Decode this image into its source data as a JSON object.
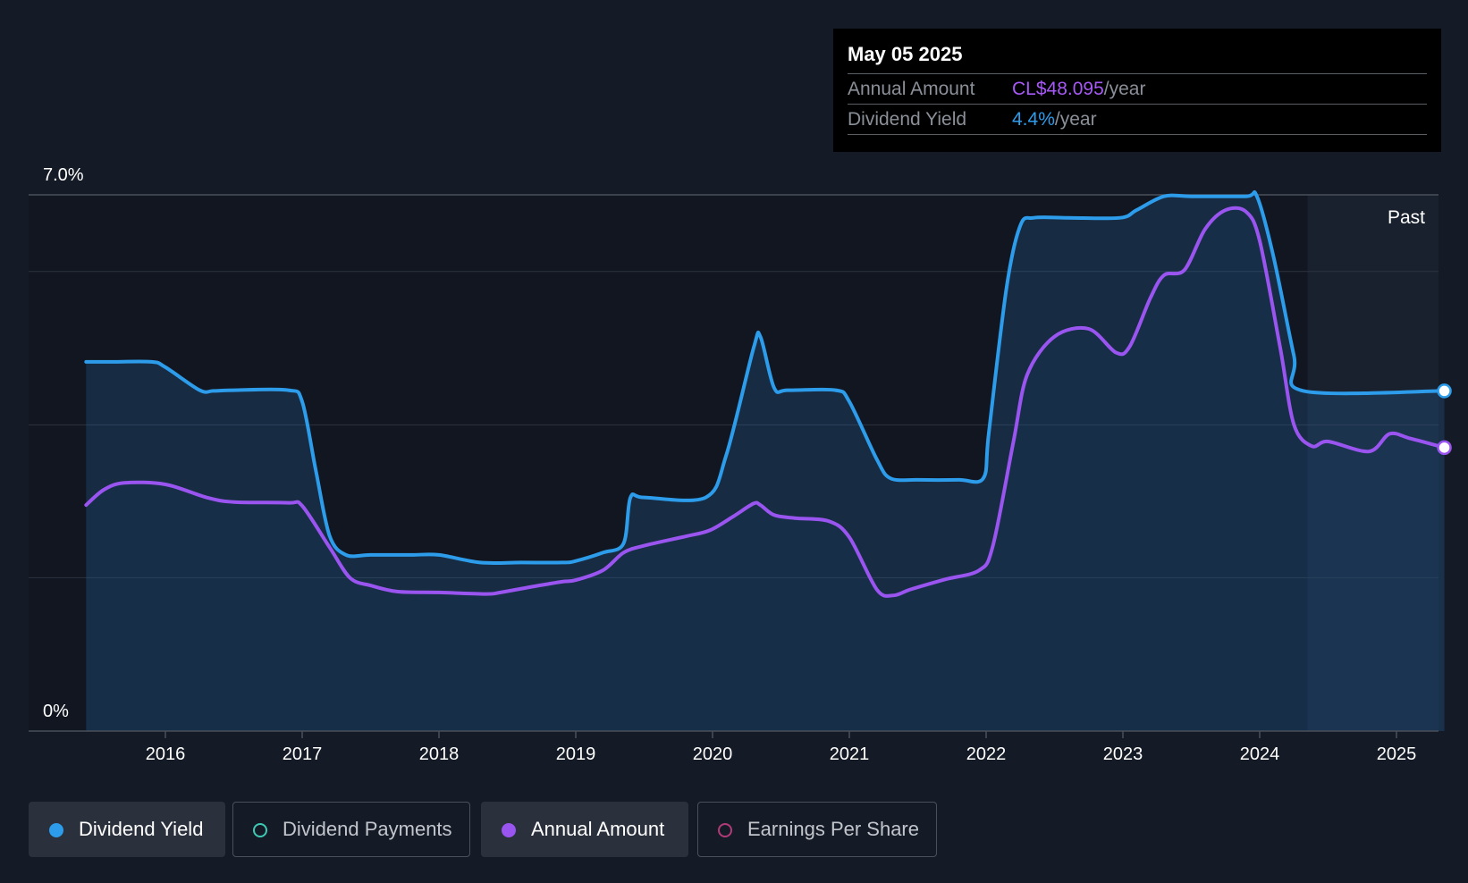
{
  "tooltip": {
    "date": "May 05 2025",
    "annual_label": "Annual Amount",
    "annual_value": "CL$48.095",
    "annual_unit": "/year",
    "yield_label": "Dividend Yield",
    "yield_value": "4.4%",
    "yield_unit": "/year"
  },
  "colors": {
    "background": "#151b26",
    "yield": "#2d9cea",
    "annual": "#9a55f0",
    "payments": "#3fc9b4",
    "eps": "#b23a78"
  },
  "legend": [
    {
      "label": "Dividend Yield",
      "active": true,
      "color": "#2d9cea"
    },
    {
      "label": "Dividend Payments",
      "active": false,
      "color": "#3fc9b4"
    },
    {
      "label": "Annual Amount",
      "active": true,
      "color": "#9a55f0"
    },
    {
      "label": "Earnings Per Share",
      "active": false,
      "color": "#b23a78"
    }
  ],
  "chart_data": {
    "type": "line",
    "y_axis_label_top": "7.0%",
    "y_axis_label_bottom": "0%",
    "ylim": [
      0,
      7.0
    ],
    "xlim": [
      2015.0,
      2025.35
    ],
    "x_ticks": [
      "2016",
      "2017",
      "2018",
      "2019",
      "2020",
      "2021",
      "2022",
      "2023",
      "2024",
      "2025"
    ],
    "past_label": "Past",
    "past_start": 2024.35,
    "grid": true,
    "series": [
      {
        "name": "Dividend Yield",
        "x": [
          2015.42,
          2015.6,
          2015.9,
          2016.0,
          2016.25,
          2016.35,
          2016.5,
          2016.9,
          2017.0,
          2017.1,
          2017.2,
          2017.32,
          2017.5,
          2017.8,
          2018.0,
          2018.3,
          2018.6,
          2018.9,
          2019.0,
          2019.2,
          2019.35,
          2019.4,
          2019.5,
          2019.95,
          2020.1,
          2020.3,
          2020.35,
          2020.45,
          2020.55,
          2020.9,
          2021.0,
          2021.2,
          2021.3,
          2021.5,
          2021.8,
          2021.98,
          2022.02,
          2022.15,
          2022.25,
          2022.35,
          2022.6,
          2022.98,
          2023.1,
          2023.3,
          2023.5,
          2023.9,
          2023.98,
          2024.1,
          2024.25,
          2024.32,
          2025.35
        ],
        "values": [
          4.82,
          4.82,
          4.82,
          4.75,
          4.45,
          4.44,
          4.45,
          4.45,
          4.3,
          3.4,
          2.55,
          2.3,
          2.3,
          2.3,
          2.3,
          2.2,
          2.2,
          2.2,
          2.22,
          2.33,
          2.45,
          3.05,
          3.05,
          3.05,
          3.6,
          5.0,
          5.15,
          4.48,
          4.45,
          4.45,
          4.3,
          3.55,
          3.3,
          3.28,
          3.28,
          3.3,
          3.9,
          5.8,
          6.6,
          6.7,
          6.7,
          6.7,
          6.8,
          6.98,
          6.98,
          6.98,
          6.98,
          6.2,
          4.9,
          4.44,
          4.44
        ]
      },
      {
        "name": "Annual Amount",
        "x": [
          2015.42,
          2015.55,
          2015.7,
          2016.0,
          2016.3,
          2016.5,
          2016.9,
          2017.0,
          2017.2,
          2017.35,
          2017.5,
          2017.7,
          2018.0,
          2018.35,
          2018.45,
          2018.7,
          2018.9,
          2019.0,
          2019.2,
          2019.35,
          2019.5,
          2019.8,
          2019.98,
          2020.15,
          2020.3,
          2020.35,
          2020.45,
          2020.6,
          2020.85,
          2021.0,
          2021.2,
          2021.32,
          2021.45,
          2021.7,
          2021.95,
          2022.05,
          2022.2,
          2022.3,
          2022.5,
          2022.75,
          2022.95,
          2023.05,
          2023.2,
          2023.3,
          2023.45,
          2023.6,
          2023.75,
          2023.9,
          2024.0,
          2024.15,
          2024.25,
          2024.38,
          2024.5,
          2024.8,
          2024.95,
          2025.1,
          2025.35
        ],
        "values": [
          2.95,
          3.15,
          3.24,
          3.22,
          3.05,
          2.99,
          2.98,
          2.94,
          2.4,
          2.0,
          1.9,
          1.82,
          1.81,
          1.79,
          1.81,
          1.89,
          1.95,
          1.97,
          2.1,
          2.33,
          2.42,
          2.54,
          2.62,
          2.8,
          2.97,
          2.95,
          2.82,
          2.78,
          2.74,
          2.53,
          1.85,
          1.77,
          1.85,
          1.98,
          2.1,
          2.42,
          3.78,
          4.65,
          5.15,
          5.25,
          4.94,
          5.02,
          5.65,
          5.95,
          6.02,
          6.55,
          6.8,
          6.78,
          6.4,
          5.0,
          4.0,
          3.72,
          3.78,
          3.65,
          3.88,
          3.82,
          3.7
        ]
      }
    ]
  }
}
